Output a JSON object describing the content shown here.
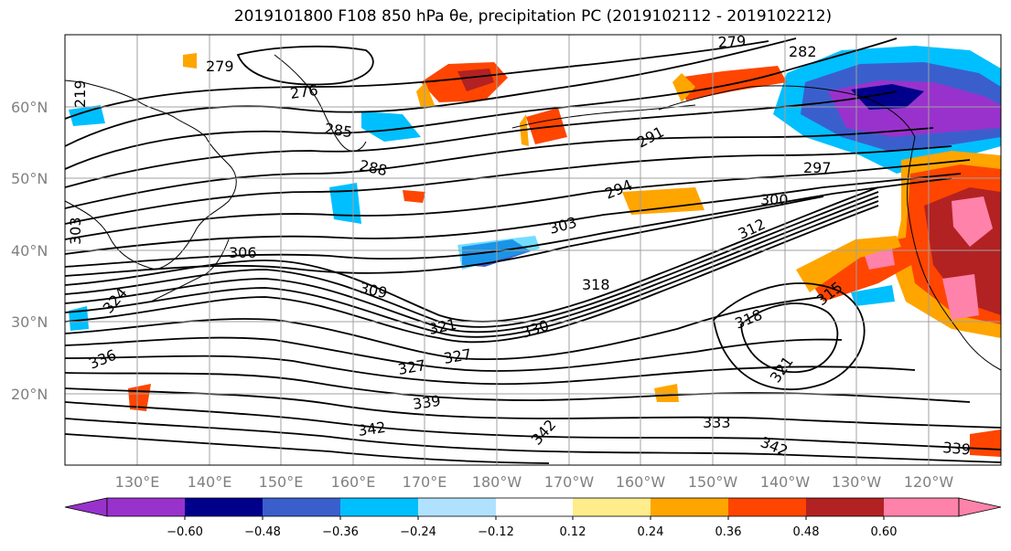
{
  "title": "2019101800 F108 850 hPa θe, precipitation PC (2019102112 - 2019102212)",
  "lat_labels": [
    "60°N",
    "50°N",
    "40°N",
    "30°N",
    "20°N"
  ],
  "lon_labels": [
    "130°E",
    "140°E",
    "150°E",
    "160°E",
    "170°E",
    "180°W",
    "170°W",
    "160°W",
    "150°W",
    "140°W",
    "130°W",
    "120°W"
  ],
  "contour_labels": [
    "279",
    "282",
    "276",
    "279",
    "285",
    "288",
    "291",
    "294",
    "297",
    "300",
    "303",
    "306",
    "309",
    "312",
    "315",
    "318",
    "318",
    "321",
    "321",
    "324",
    "327",
    "327",
    "330",
    "333",
    "336",
    "339",
    "339",
    "342",
    "342",
    "342",
    "303",
    "219"
  ],
  "colorbar": {
    "ticks": [
      "−0.60",
      "−0.48",
      "−0.36",
      "−0.24",
      "−0.12",
      "0.12",
      "0.24",
      "0.36",
      "0.48",
      "0.60"
    ],
    "colors": [
      "#9932cc",
      "#00008b",
      "#3a5fcd",
      "#00bfff",
      "#b0e2ff",
      "#ffffff",
      "#ffec8b",
      "#ffa500",
      "#ff4500",
      "#b22222",
      "#ff82ab"
    ]
  }
}
